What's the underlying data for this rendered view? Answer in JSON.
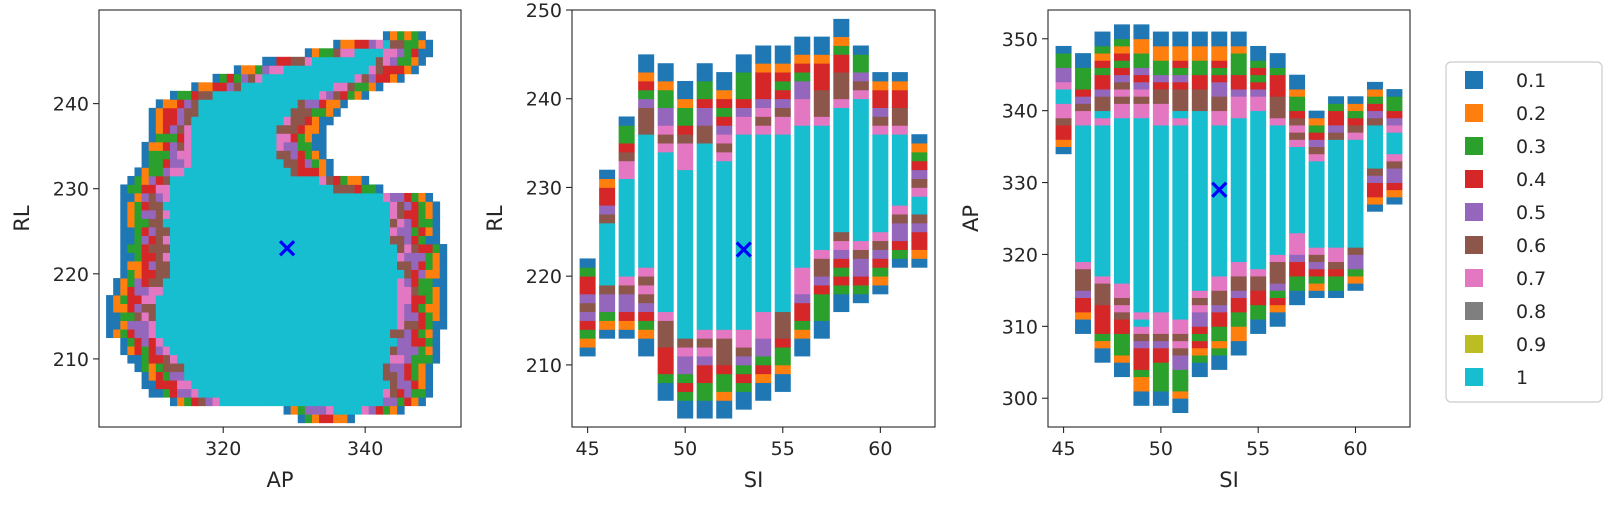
{
  "legend": {
    "placement": "right",
    "entries": [
      {
        "label": "0.1",
        "color": "#1f77b4"
      },
      {
        "label": "0.2",
        "color": "#ff7f0e"
      },
      {
        "label": "0.3",
        "color": "#2ca02c"
      },
      {
        "label": "0.4",
        "color": "#d62728"
      },
      {
        "label": "0.5",
        "color": "#9467bd"
      },
      {
        "label": "0.6",
        "color": "#8c564b"
      },
      {
        "label": "0.7",
        "color": "#e377c2"
      },
      {
        "label": "0.8",
        "color": "#7f7f7f"
      },
      {
        "label": "0.9",
        "color": "#bcbd22"
      },
      {
        "label": "1",
        "color": "#17becf"
      }
    ]
  },
  "chart_data": [
    {
      "type": "heatmap",
      "xlabel": "AP",
      "ylabel": "RL",
      "xlim": [
        302.5,
        353.5
      ],
      "ylim": [
        202,
        251
      ],
      "xticks": [
        320,
        340
      ],
      "yticks": [
        210,
        220,
        230,
        240
      ],
      "marker": {
        "x": 329,
        "y": 223,
        "color": "#0000ff"
      },
      "rows": [
        [
          209,
          203,
          331,
          338
        ],
        [
          209,
          204,
          329,
          345
        ],
        [
          209,
          205,
          313,
          348
        ],
        [
          209,
          206,
          310,
          349
        ],
        [
          209,
          207,
          309,
          349
        ],
        [
          209,
          208,
          309,
          349
        ],
        [
          209,
          209,
          308,
          349
        ],
        [
          209,
          210,
          307,
          350
        ],
        [
          209,
          211,
          306,
          350
        ],
        [
          209,
          212,
          306,
          350
        ],
        [
          208,
          213,
          304,
          350
        ],
        [
          208,
          214,
          304,
          351
        ],
        [
          208,
          215,
          304,
          351
        ],
        [
          208,
          216,
          304,
          351
        ],
        [
          208,
          217,
          304,
          351
        ],
        [
          208,
          218,
          305,
          351
        ],
        [
          208,
          219,
          305,
          351
        ],
        [
          208,
          220,
          306,
          351
        ],
        [
          208,
          221,
          306,
          351
        ],
        [
          208,
          222,
          306,
          351
        ],
        [
          208,
          223,
          306,
          351
        ],
        [
          208,
          224,
          306,
          350
        ],
        [
          209,
          225,
          306,
          350
        ],
        [
          209,
          226,
          306,
          350
        ],
        [
          209,
          227,
          306,
          350
        ],
        [
          209,
          228,
          306,
          350
        ],
        [
          209,
          229,
          306,
          349
        ],
        [
          209,
          230,
          306,
          342
        ],
        [
          209,
          231,
          307,
          340
        ],
        [
          209,
          232,
          308,
          335
        ],
        [
          209,
          233,
          309,
          335
        ],
        [
          209,
          234,
          309,
          334
        ],
        [
          209,
          235,
          309,
          334
        ],
        [
          209,
          236,
          310,
          334
        ],
        [
          209,
          237,
          310,
          334
        ],
        [
          209,
          238,
          310,
          335
        ],
        [
          209,
          239,
          310,
          336
        ],
        [
          209,
          240,
          311,
          337
        ],
        [
          209,
          241,
          313,
          340
        ],
        [
          209,
          242,
          316,
          342
        ],
        [
          209,
          243,
          319,
          345
        ],
        [
          209,
          244,
          322,
          347
        ],
        [
          209,
          245,
          326,
          348
        ],
        [
          209,
          246,
          332,
          349
        ],
        [
          209,
          247,
          336,
          349
        ],
        [
          209,
          248,
          343,
          348
        ]
      ]
    },
    {
      "type": "bar",
      "xlabel": "SI",
      "ylabel": "RL",
      "xlim": [
        44.2,
        62.8
      ],
      "ylim": [
        203,
        250
      ],
      "xticks": [
        45,
        50,
        55,
        60
      ],
      "yticks": [
        210,
        220,
        230,
        240,
        250
      ],
      "marker": {
        "x": 53,
        "y": 223,
        "color": "#0000ff"
      },
      "columns": [
        {
          "x": 45,
          "min": 211,
          "max": 222
        },
        {
          "x": 46,
          "min": 213,
          "max": 232
        },
        {
          "x": 47,
          "min": 213,
          "max": 238
        },
        {
          "x": 48,
          "min": 211,
          "max": 245
        },
        {
          "x": 49,
          "min": 206,
          "max": 244
        },
        {
          "x": 50,
          "min": 204,
          "max": 242
        },
        {
          "x": 51,
          "min": 204,
          "max": 244
        },
        {
          "x": 52,
          "min": 204,
          "max": 243
        },
        {
          "x": 53,
          "min": 205,
          "max": 245
        },
        {
          "x": 54,
          "min": 206,
          "max": 246
        },
        {
          "x": 55,
          "min": 207,
          "max": 246
        },
        {
          "x": 56,
          "min": 211,
          "max": 247
        },
        {
          "x": 57,
          "min": 213,
          "max": 247
        },
        {
          "x": 58,
          "min": 216,
          "max": 249
        },
        {
          "x": 59,
          "min": 217,
          "max": 246
        },
        {
          "x": 60,
          "min": 218,
          "max": 243
        },
        {
          "x": 61,
          "min": 221,
          "max": 243
        },
        {
          "x": 62,
          "min": 221,
          "max": 236
        }
      ]
    },
    {
      "type": "bar",
      "xlabel": "SI",
      "ylabel": "AP",
      "xlim": [
        44.2,
        62.8
      ],
      "ylim": [
        296,
        354
      ],
      "xticks": [
        45,
        50,
        55,
        60
      ],
      "yticks": [
        300,
        310,
        320,
        330,
        340,
        350
      ],
      "marker": {
        "x": 53,
        "y": 329,
        "color": "#0000ff"
      },
      "columns": [
        {
          "x": 45,
          "min": 334,
          "max": 349
        },
        {
          "x": 46,
          "min": 309,
          "max": 348
        },
        {
          "x": 47,
          "min": 305,
          "max": 351
        },
        {
          "x": 48,
          "min": 303,
          "max": 352
        },
        {
          "x": 49,
          "min": 299,
          "max": 352
        },
        {
          "x": 50,
          "min": 299,
          "max": 351
        },
        {
          "x": 51,
          "min": 298,
          "max": 351
        },
        {
          "x": 52,
          "min": 303,
          "max": 351
        },
        {
          "x": 53,
          "min": 304,
          "max": 351
        },
        {
          "x": 54,
          "min": 306,
          "max": 351
        },
        {
          "x": 55,
          "min": 309,
          "max": 349
        },
        {
          "x": 56,
          "min": 310,
          "max": 348
        },
        {
          "x": 57,
          "min": 313,
          "max": 345
        },
        {
          "x": 58,
          "min": 314,
          "max": 340
        },
        {
          "x": 59,
          "min": 314,
          "max": 342
        },
        {
          "x": 60,
          "min": 315,
          "max": 342
        },
        {
          "x": 61,
          "min": 326,
          "max": 344
        },
        {
          "x": 62,
          "min": 327,
          "max": 343
        }
      ]
    }
  ]
}
